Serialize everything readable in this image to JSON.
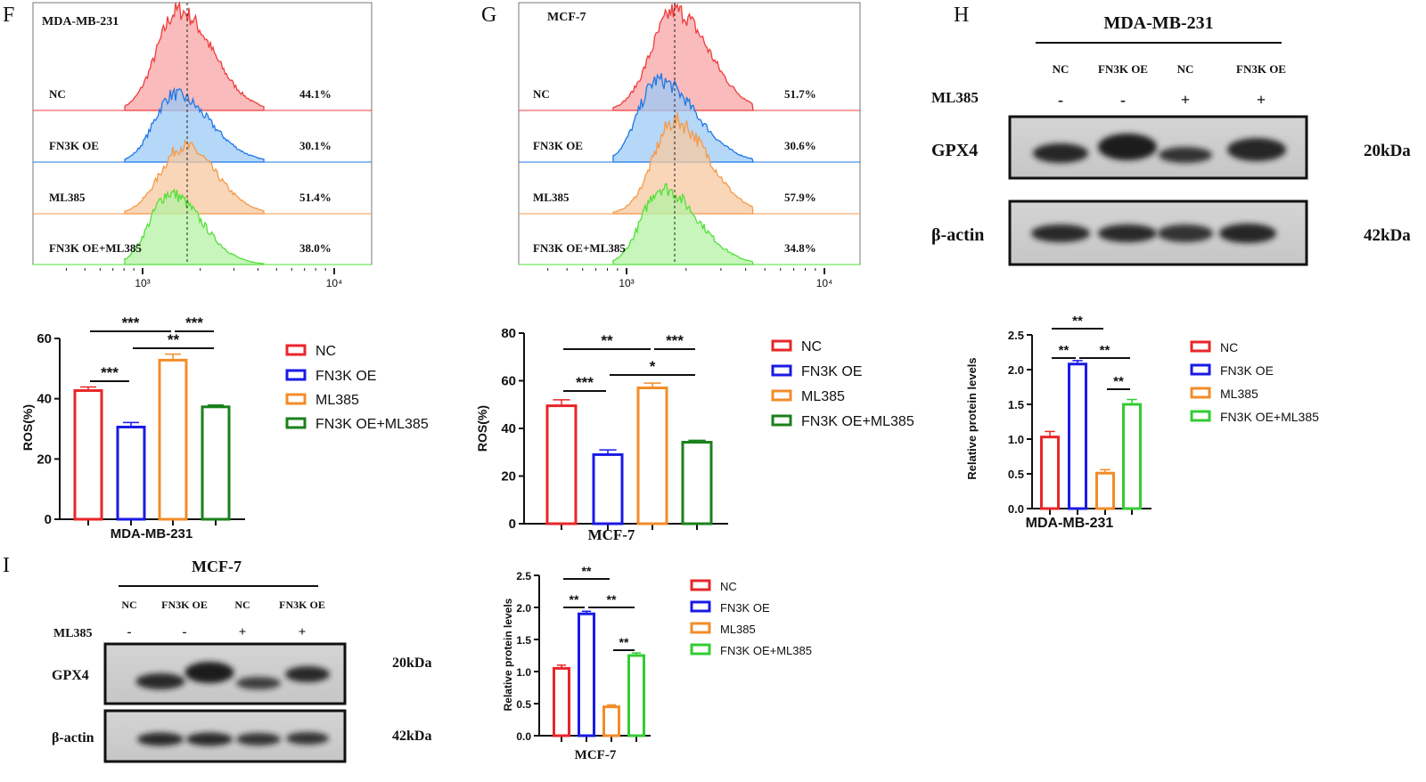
{
  "panels": {
    "F": "F",
    "G": "G",
    "H": "H",
    "I": "I"
  },
  "chart_data": [
    {
      "panel": "F",
      "type": "histogram",
      "title": "MDA-MB-231",
      "x_scale": "log",
      "x_ticks": [
        "10³",
        "10⁴"
      ],
      "rows": [
        {
          "label": "NC",
          "percent": "44.1%",
          "color": "#f03c3c",
          "fill": "#f7a4a4"
        },
        {
          "label": "FN3K OE",
          "percent": "30.1%",
          "color": "#1e78e6",
          "fill": "#9ccaf6"
        },
        {
          "label": "ML385",
          "percent": "51.4%",
          "color": "#f59a48",
          "fill": "#f8c8a0"
        },
        {
          "label": "FN3K OE+ML385",
          "percent": "38.0%",
          "color": "#52e03a",
          "fill": "#b4f2a4"
        }
      ]
    },
    {
      "panel": "G",
      "type": "histogram",
      "title": "MCF-7",
      "x_scale": "log",
      "x_ticks": [
        "10³",
        "10⁴"
      ],
      "rows": [
        {
          "label": "NC",
          "percent": "51.7%",
          "color": "#f03c3c",
          "fill": "#f7a4a4"
        },
        {
          "label": "FN3K OE",
          "percent": "30.6%",
          "color": "#1e78e6",
          "fill": "#9ccaf6"
        },
        {
          "label": "ML385",
          "percent": "57.9%",
          "color": "#f59a48",
          "fill": "#f8c8a0"
        },
        {
          "label": "FN3K OE+ML385",
          "percent": "34.8%",
          "color": "#52e03a",
          "fill": "#b4f2a4"
        }
      ]
    },
    {
      "panel": "F",
      "type": "bar",
      "title": "",
      "xlabel": "MDA-MB-231",
      "ylabel": "ROS(%)",
      "ylim": [
        0,
        60
      ],
      "yticks": [
        "0",
        "20",
        "40",
        "60"
      ],
      "ytick_values": [
        0,
        20,
        40,
        60
      ],
      "categories": [
        "NC",
        "FN3K OE",
        "ML385",
        "FN3K OE+ML385"
      ],
      "values": [
        42.7,
        30.6,
        52.8,
        37.3
      ],
      "errors": [
        1.2,
        1.5,
        2.0,
        0.6
      ],
      "colors": [
        "#e8262a",
        "#1a1ae6",
        "#f28c28",
        "#1a801a"
      ],
      "legend": "right",
      "significance": [
        {
          "from": 0,
          "to": 2,
          "label": "***"
        },
        {
          "from": 2,
          "to": 3,
          "label": "***"
        },
        {
          "from": 1,
          "to": 3,
          "label": "**"
        },
        {
          "from": 0,
          "to": 1,
          "label": "***"
        }
      ]
    },
    {
      "panel": "G",
      "type": "bar",
      "title": "",
      "xlabel": "MCF-7",
      "ylabel": "ROS(%)",
      "ylim": [
        0,
        80
      ],
      "yticks": [
        "0",
        "20",
        "40",
        "60",
        "80"
      ],
      "ytick_values": [
        0,
        20,
        40,
        60,
        80
      ],
      "categories": [
        "NC",
        "FN3K OE",
        "ML385",
        "FN3K OE+ML385"
      ],
      "values": [
        49.5,
        29.0,
        57.0,
        34.2
      ],
      "errors": [
        2.5,
        2.0,
        2.0,
        0.8
      ],
      "colors": [
        "#e8262a",
        "#1a1ae6",
        "#f28c28",
        "#1a801a"
      ],
      "legend": "right",
      "significance": [
        {
          "from": 0,
          "to": 2,
          "label": "**"
        },
        {
          "from": 2,
          "to": 3,
          "label": "***"
        },
        {
          "from": 1,
          "to": 3,
          "label": "*"
        },
        {
          "from": 0,
          "to": 1,
          "label": "***"
        }
      ]
    },
    {
      "panel": "H",
      "type": "bar",
      "title": "",
      "xlabel": "MDA-MB-231",
      "ylabel": "Relative protein levels",
      "ylim": [
        0,
        2.5
      ],
      "yticks": [
        "0.0",
        "0.5",
        "1.0",
        "1.5",
        "2.0",
        "2.5"
      ],
      "ytick_values": [
        0,
        0.5,
        1,
        1.5,
        2,
        2.5
      ],
      "categories": [
        "NC",
        "FN3K OE",
        "ML385",
        "FN3K OE+ML385"
      ],
      "values": [
        1.03,
        2.08,
        0.51,
        1.5
      ],
      "errors": [
        0.08,
        0.05,
        0.05,
        0.07
      ],
      "colors": [
        "#e8262a",
        "#1a1ae6",
        "#f28c28",
        "#33cc33"
      ],
      "legend": "right",
      "significance": [
        {
          "from": 0,
          "to": 2,
          "label": "**"
        },
        {
          "from": 0,
          "to": 1,
          "label": "**"
        },
        {
          "from": 1,
          "to": 3,
          "label": "**"
        },
        {
          "from": 2,
          "to": 3,
          "label": "**"
        }
      ]
    },
    {
      "panel": "I",
      "type": "bar",
      "title": "",
      "xlabel": "MCF-7",
      "ylabel": "Relative protein levels",
      "ylim": [
        0,
        2.5
      ],
      "yticks": [
        "0.0",
        "0.5",
        "1.0",
        "1.5",
        "2.0",
        "2.5"
      ],
      "ytick_values": [
        0,
        0.5,
        1,
        1.5,
        2,
        2.5
      ],
      "categories": [
        "NC",
        "FN3K OE",
        "ML385",
        "FN3K OE+ML385"
      ],
      "values": [
        1.05,
        1.9,
        0.45,
        1.25
      ],
      "errors": [
        0.05,
        0.04,
        0.03,
        0.04
      ],
      "colors": [
        "#e8262a",
        "#1a1ae6",
        "#f28c28",
        "#33cc33"
      ],
      "legend": "right",
      "significance": [
        {
          "from": 0,
          "to": 2,
          "label": "**"
        },
        {
          "from": 0,
          "to": 1,
          "label": "**"
        },
        {
          "from": 1,
          "to": 3,
          "label": "**"
        },
        {
          "from": 2,
          "to": 3,
          "label": "**"
        }
      ]
    }
  ],
  "blots": [
    {
      "panel": "H",
      "title": "MDA-MB-231",
      "lanes": [
        "NC",
        "FN3K OE",
        "NC",
        "FN3K OE"
      ],
      "treatment": {
        "label": "ML385",
        "signs": [
          "-",
          "-",
          "+",
          "+"
        ]
      },
      "proteins": [
        {
          "name": "GPX4",
          "size": "20kDa"
        },
        {
          "name": "β-actin",
          "size": "42kDa"
        }
      ]
    },
    {
      "panel": "I",
      "title": "MCF-7",
      "lanes": [
        "NC",
        "FN3K OE",
        "NC",
        "FN3K OE"
      ],
      "treatment": {
        "label": "ML385",
        "signs": [
          "-",
          "-",
          "+",
          "+"
        ]
      },
      "proteins": [
        {
          "name": "GPX4",
          "size": "20kDa"
        },
        {
          "name": "β-actin",
          "size": "42kDa"
        }
      ]
    }
  ]
}
